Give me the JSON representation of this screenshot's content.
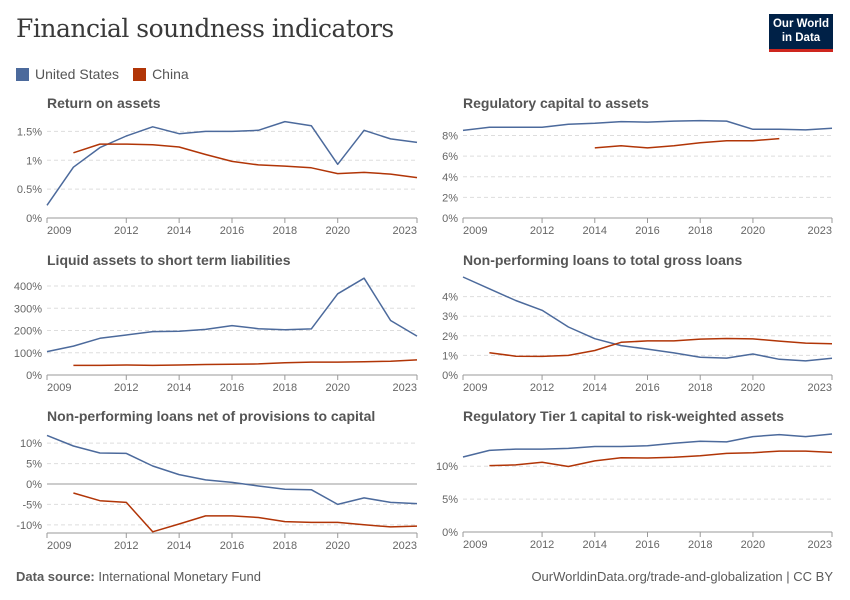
{
  "header": {
    "title": "Financial soundness indicators",
    "logo_line1": "Our World",
    "logo_line2": "in Data"
  },
  "legend": [
    {
      "name": "United States",
      "color": "#4c6a9c"
    },
    {
      "name": "China",
      "color": "#b13507"
    }
  ],
  "footer": {
    "source_label": "Data source:",
    "source": "International Monetary Fund",
    "url": "OurWorldinData.org/trade-and-globalization | CC BY"
  },
  "chart_data": [
    {
      "type": "line",
      "title": "Return on assets",
      "x": [
        2009,
        2010,
        2011,
        2012,
        2013,
        2014,
        2015,
        2016,
        2017,
        2018,
        2019,
        2020,
        2021,
        2022,
        2023
      ],
      "xticks": [
        "2009",
        "2012",
        "2014",
        "2016",
        "2018",
        "2020",
        "2023"
      ],
      "ylim": [
        0,
        1.75
      ],
      "yticks": [
        0,
        0.5,
        1,
        1.5
      ],
      "ytick_labels": [
        "0%",
        "0.5%",
        "1%",
        "1.5%"
      ],
      "grid": true,
      "series": [
        {
          "name": "United States",
          "values": [
            0.22,
            0.88,
            1.22,
            1.42,
            1.58,
            1.46,
            1.5,
            1.5,
            1.52,
            1.67,
            1.6,
            0.93,
            1.52,
            1.37,
            1.31
          ]
        },
        {
          "name": "China",
          "values": [
            null,
            1.13,
            1.28,
            1.28,
            1.27,
            1.23,
            1.1,
            0.98,
            0.92,
            0.9,
            0.87,
            0.77,
            0.79,
            0.76,
            0.7
          ]
        }
      ]
    },
    {
      "type": "line",
      "title": "Regulatory capital to assets",
      "x": [
        2009,
        2010,
        2011,
        2012,
        2013,
        2014,
        2015,
        2016,
        2017,
        2018,
        2019,
        2020,
        2021,
        2022,
        2023
      ],
      "xticks": [
        "2009",
        "2012",
        "2014",
        "2016",
        "2018",
        "2020",
        "2023"
      ],
      "ylim": [
        0,
        9.7
      ],
      "yticks": [
        0,
        2,
        4,
        6,
        8
      ],
      "ytick_labels": [
        "0%",
        "2%",
        "4%",
        "6%",
        "8%"
      ],
      "grid": true,
      "series": [
        {
          "name": "United States",
          "values": [
            8.5,
            8.8,
            8.8,
            8.8,
            9.1,
            9.2,
            9.35,
            9.3,
            9.4,
            9.45,
            9.4,
            8.6,
            8.6,
            8.55,
            8.7
          ]
        },
        {
          "name": "China",
          "values": [
            null,
            null,
            null,
            null,
            null,
            6.8,
            7.0,
            6.8,
            7.0,
            7.3,
            7.5,
            7.5,
            7.7,
            null,
            null
          ]
        }
      ]
    },
    {
      "type": "line",
      "title": "Liquid assets to short term liabilities",
      "x": [
        2009,
        2010,
        2011,
        2012,
        2013,
        2014,
        2015,
        2016,
        2017,
        2018,
        2019,
        2020,
        2021,
        2022,
        2023
      ],
      "xticks": [
        "2009",
        "2012",
        "2014",
        "2016",
        "2018",
        "2020",
        "2023"
      ],
      "ylim": [
        0,
        445
      ],
      "yticks": [
        0,
        100,
        200,
        300,
        400
      ],
      "ytick_labels": [
        "0%",
        "100%",
        "200%",
        "300%",
        "400%"
      ],
      "grid": true,
      "series": [
        {
          "name": "United States",
          "values": [
            105,
            130,
            165,
            180,
            195,
            197,
            205,
            222,
            208,
            203,
            207,
            365,
            435,
            245,
            175
          ]
        },
        {
          "name": "China",
          "values": [
            null,
            43,
            43,
            45,
            43,
            45,
            47,
            48,
            50,
            55,
            58,
            58,
            60,
            62,
            68
          ]
        }
      ]
    },
    {
      "type": "line",
      "title": "Non-performing loans to total gross loans",
      "x": [
        2009,
        2010,
        2011,
        2012,
        2013,
        2014,
        2015,
        2016,
        2017,
        2018,
        2019,
        2020,
        2021,
        2022,
        2023
      ],
      "xticks": [
        "2009",
        "2012",
        "2014",
        "2016",
        "2018",
        "2020",
        "2023"
      ],
      "ylim": [
        0,
        5
      ],
      "yticks": [
        0,
        1,
        2,
        3,
        4
      ],
      "ytick_labels": [
        "0%",
        "1%",
        "2%",
        "3%",
        "4%"
      ],
      "grid": true,
      "series": [
        {
          "name": "United States",
          "values": [
            5.0,
            4.4,
            3.8,
            3.3,
            2.45,
            1.85,
            1.5,
            1.32,
            1.13,
            0.91,
            0.86,
            1.07,
            0.8,
            0.72,
            0.85
          ]
        },
        {
          "name": "China",
          "values": [
            null,
            1.14,
            0.96,
            0.95,
            1.0,
            1.25,
            1.67,
            1.74,
            1.74,
            1.83,
            1.86,
            1.84,
            1.73,
            1.63,
            1.59
          ]
        }
      ]
    },
    {
      "type": "line",
      "title": "Non-performing loans net of provisions to capital",
      "x": [
        2009,
        2010,
        2011,
        2012,
        2013,
        2014,
        2015,
        2016,
        2017,
        2018,
        2019,
        2020,
        2021,
        2022,
        2023
      ],
      "xticks": [
        "2009",
        "2012",
        "2014",
        "2016",
        "2018",
        "2020",
        "2023"
      ],
      "ylim": [
        -12,
        12
      ],
      "yticks": [
        -10,
        -5,
        0,
        5,
        10
      ],
      "ytick_labels": [
        "-10%",
        "-5%",
        "0%",
        "5%",
        "10%"
      ],
      "grid": true,
      "series": [
        {
          "name": "United States",
          "values": [
            11.9,
            9.3,
            7.6,
            7.5,
            4.4,
            2.3,
            1.0,
            0.4,
            -0.5,
            -1.3,
            -1.4,
            -5.0,
            -3.4,
            -4.5,
            -4.8
          ]
        },
        {
          "name": "China",
          "values": [
            null,
            -2.2,
            -4.1,
            -4.5,
            -11.7,
            -9.8,
            -7.8,
            -7.8,
            -8.2,
            -9.2,
            -9.4,
            -9.4,
            -10.0,
            -10.5,
            -10.3
          ]
        }
      ]
    },
    {
      "type": "line",
      "title": "Regulatory Tier 1 capital to risk-weighted assets",
      "x": [
        2009,
        2010,
        2011,
        2012,
        2013,
        2014,
        2015,
        2016,
        2017,
        2018,
        2019,
        2020,
        2021,
        2022,
        2023
      ],
      "xticks": [
        "2009",
        "2012",
        "2014",
        "2016",
        "2018",
        "2020",
        "2023"
      ],
      "ylim": [
        0,
        15.2
      ],
      "yticks": [
        0,
        5,
        10
      ],
      "ytick_labels": [
        "0%",
        "5%",
        "10%"
      ],
      "grid": true,
      "series": [
        {
          "name": "United States",
          "values": [
            11.4,
            12.4,
            12.6,
            12.6,
            12.7,
            13.0,
            13.0,
            13.1,
            13.5,
            13.8,
            13.7,
            14.5,
            14.8,
            14.5,
            14.9
          ]
        },
        {
          "name": "China",
          "values": [
            null,
            10.1,
            10.2,
            10.6,
            9.95,
            10.8,
            11.3,
            11.25,
            11.35,
            11.6,
            11.95,
            12.05,
            12.3,
            12.3,
            12.1
          ]
        }
      ]
    }
  ]
}
